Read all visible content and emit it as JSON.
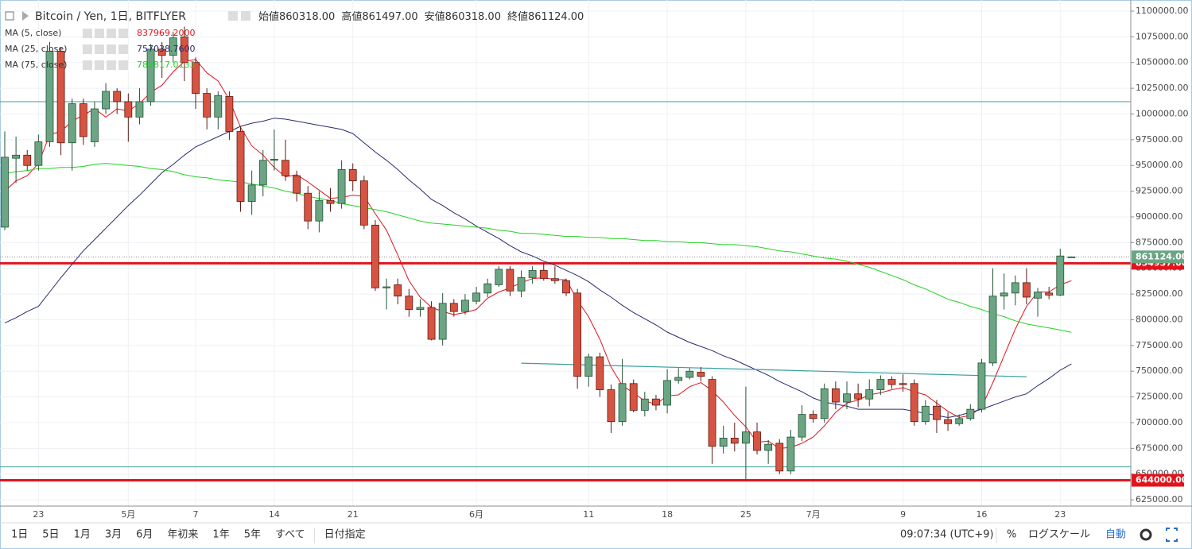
{
  "header": {
    "title": "Bitcoin / Yen, 1日, BITFLYER",
    "ohlc": [
      {
        "name": "始値",
        "value": "860318.00"
      },
      {
        "name": "高値",
        "value": "861497.00"
      },
      {
        "name": "安値",
        "value": "860318.00"
      },
      {
        "name": "終値",
        "value": "861124.00"
      }
    ]
  },
  "chart_data": {
    "type": "candlestick",
    "categories": [
      null,
      null,
      null,
      "23",
      null,
      null,
      null,
      null,
      null,
      null,
      null,
      "5月",
      null,
      null,
      null,
      null,
      null,
      "7",
      null,
      null,
      null,
      null,
      null,
      null,
      "14",
      null,
      null,
      null,
      null,
      null,
      null,
      "21",
      null,
      null,
      null,
      null,
      null,
      null,
      null,
      null,
      null,
      null,
      "6月",
      null,
      null,
      null,
      null,
      null,
      null,
      null,
      null,
      null,
      "11",
      null,
      null,
      null,
      null,
      null,
      null,
      "18",
      null,
      null,
      null,
      null,
      null,
      null,
      "25",
      null,
      null,
      null,
      null,
      null,
      "7月",
      null,
      null,
      null,
      null,
      null,
      null,
      null,
      "9",
      null,
      null,
      null,
      null,
      null,
      null,
      "16",
      null,
      null,
      null,
      null,
      null,
      null,
      "23",
      null
    ],
    "open": [
      890000,
      957000,
      960000,
      950000,
      973000,
      1061000,
      972000,
      1010000,
      973000,
      1005000,
      1022000,
      1012000,
      997000,
      1012000,
      1063000,
      1057000,
      1075000,
      1050000,
      1020000,
      997000,
      1017000,
      983000,
      915000,
      931000,
      955000,
      955000,
      940000,
      923000,
      896000,
      916000,
      913000,
      946000,
      935000,
      892000,
      831000,
      834000,
      823000,
      810000,
      812000,
      781000,
      816000,
      808000,
      818000,
      826000,
      834000,
      849000,
      828000,
      841000,
      848000,
      840000,
      838000,
      826000,
      745000,
      764000,
      732000,
      701000,
      738000,
      712000,
      723000,
      717000,
      741000,
      744000,
      749000,
      742000,
      677000,
      685000,
      680000,
      691000,
      673000,
      680000,
      653000,
      686000,
      708000,
      704000,
      733000,
      720000,
      728000,
      723000,
      732000,
      742000,
      738000,
      738000,
      701000,
      716000,
      703000,
      699000,
      704000,
      713000,
      758000,
      823000,
      826000,
      836000,
      821000,
      826000,
      824000,
      860318
    ],
    "high": [
      983000,
      978000,
      965000,
      980000,
      1070000,
      1065000,
      1015000,
      1015000,
      1012000,
      1030000,
      1025000,
      1020000,
      1025000,
      1068000,
      1070000,
      1080000,
      1085000,
      1055000,
      1025000,
      1022000,
      1022000,
      988000,
      945000,
      965000,
      985000,
      975000,
      945000,
      930000,
      925000,
      928000,
      955000,
      952000,
      940000,
      897000,
      840000,
      840000,
      830000,
      820000,
      818000,
      826000,
      820000,
      825000,
      832000,
      840000,
      852000,
      852000,
      848000,
      852000,
      855000,
      852000,
      840000,
      830000,
      767000,
      768000,
      737000,
      762000,
      742000,
      730000,
      727000,
      752000,
      753000,
      753000,
      754000,
      745000,
      697000,
      700000,
      735000,
      700000,
      683000,
      684000,
      693000,
      717000,
      712000,
      738000,
      740000,
      740000,
      738000,
      742000,
      746000,
      745000,
      747000,
      742000,
      722000,
      722000,
      710000,
      708000,
      718000,
      762000,
      850000,
      845000,
      843000,
      850000,
      831000,
      832000,
      869000,
      861497
    ],
    "low": [
      887000,
      933000,
      945000,
      945000,
      968000,
      960000,
      945000,
      970000,
      968000,
      1000000,
      1000000,
      973000,
      990000,
      1008000,
      1035000,
      1050000,
      1032000,
      1005000,
      985000,
      985000,
      975000,
      905000,
      902000,
      920000,
      945000,
      935000,
      915000,
      888000,
      885000,
      905000,
      908000,
      925000,
      888000,
      828000,
      810000,
      815000,
      803000,
      803000,
      780000,
      775000,
      803000,
      805000,
      815000,
      822000,
      832000,
      823000,
      822000,
      835000,
      838000,
      835000,
      823000,
      733000,
      735000,
      725000,
      690000,
      697000,
      710000,
      706000,
      712000,
      709000,
      738000,
      742000,
      740000,
      660000,
      670000,
      672000,
      645000,
      669000,
      660000,
      650000,
      650000,
      682000,
      700000,
      700000,
      713000,
      713000,
      715000,
      716000,
      727000,
      733000,
      730000,
      697000,
      698000,
      690000,
      692000,
      697000,
      702000,
      710000,
      755000,
      810000,
      814000,
      815000,
      803000,
      820000,
      823000,
      860318
    ],
    "close": [
      958000,
      960000,
      950000,
      973000,
      1061000,
      972000,
      1010000,
      978000,
      1005000,
      1022000,
      1012000,
      997000,
      1012000,
      1063000,
      1057000,
      1074000,
      1050000,
      1020000,
      997000,
      1018000,
      983000,
      915000,
      931000,
      955000,
      956000,
      940000,
      923000,
      896000,
      916000,
      913000,
      946000,
      935000,
      892000,
      831000,
      832000,
      823000,
      810000,
      812000,
      781000,
      816000,
      808000,
      819000,
      826000,
      835000,
      849000,
      828000,
      841000,
      848000,
      840000,
      838000,
      826000,
      745000,
      764000,
      732000,
      701000,
      738000,
      712000,
      723000,
      717000,
      741000,
      744000,
      750000,
      745000,
      677000,
      685000,
      680000,
      691000,
      673000,
      679000,
      653000,
      686000,
      708000,
      704000,
      733000,
      720000,
      728000,
      723000,
      732000,
      742000,
      737000,
      737000,
      701000,
      716000,
      703000,
      699000,
      704000,
      713000,
      758000,
      823000,
      826000,
      836000,
      822000,
      827000,
      824000,
      862000,
      861124
    ],
    "up_color": "#6ba583",
    "up_border": "#225437",
    "down_color": "#d75442",
    "down_border": "#5b1a13",
    "series": [
      {
        "name": "MA (5, close)",
        "color": "#e0141d",
        "value_label": "837969.2000",
        "values": [
          925000,
          935000,
          940000,
          952000,
          980000,
          983000,
          993000,
          999000,
          1005000,
          997000,
          1005000,
          1003000,
          1010000,
          1021000,
          1028000,
          1041000,
          1051000,
          1053000,
          1040000,
          1032000,
          1014000,
          987000,
          969000,
          960000,
          948000,
          939000,
          941000,
          934000,
          926000,
          918000,
          919000,
          921000,
          920000,
          903000,
          887000,
          863000,
          838000,
          822000,
          812000,
          808000,
          805000,
          807000,
          810000,
          821000,
          827000,
          831000,
          836000,
          840000,
          841000,
          839000,
          839000,
          819000,
          803000,
          781000,
          754000,
          736000,
          729000,
          721000,
          718000,
          726000,
          727000,
          735000,
          739000,
          731000,
          720000,
          707000,
          696000,
          681000,
          682000,
          675000,
          676000,
          680000,
          686000,
          697000,
          710000,
          719000,
          722000,
          727000,
          729000,
          732000,
          734000,
          730000,
          727000,
          719000,
          711000,
          705000,
          707000,
          715000,
          739000,
          765000,
          791000,
          813000,
          827000,
          827000,
          834000,
          837969.2
        ]
      },
      {
        "name": "MA (25, close)",
        "color": "#2a2a6e",
        "value_label": "757038.7600",
        "values": [
          797000,
          802000,
          808000,
          813000,
          827000,
          841000,
          854000,
          867000,
          878000,
          889000,
          900000,
          911000,
          921000,
          932000,
          943000,
          951000,
          960000,
          968000,
          973000,
          978000,
          983000,
          988000,
          991000,
          993000,
          996000,
          995000,
          993000,
          991000,
          989000,
          987000,
          985000,
          981000,
          972000,
          963000,
          955000,
          946000,
          936000,
          927000,
          917000,
          911000,
          904000,
          898000,
          891000,
          885000,
          879000,
          872000,
          866000,
          862000,
          857000,
          853000,
          848000,
          843000,
          837000,
          829000,
          822000,
          814000,
          807000,
          801000,
          795000,
          788000,
          783000,
          778000,
          774000,
          770000,
          765000,
          761000,
          756000,
          751000,
          746000,
          740000,
          735000,
          730000,
          724000,
          720000,
          718000,
          716000,
          713000,
          713000,
          713000,
          713000,
          713000,
          711000,
          709000,
          707000,
          705000,
          707000,
          710000,
          713000,
          717000,
          721000,
          725000,
          728000,
          736000,
          743000,
          751000,
          757038.76
        ]
      },
      {
        "name": "MA (75, close)",
        "color": "#22d322",
        "value_label": "787817.0133",
        "values": [
          942000,
          944000,
          945000,
          947000,
          947000,
          948000,
          948000,
          949000,
          951000,
          952000,
          951000,
          950000,
          949000,
          947000,
          946000,
          944000,
          941000,
          939000,
          938000,
          936000,
          935000,
          934000,
          932000,
          930000,
          928000,
          925000,
          923000,
          920000,
          918000,
          916000,
          913000,
          911000,
          909000,
          907000,
          905000,
          902000,
          899000,
          896000,
          894000,
          893000,
          892000,
          891000,
          890000,
          889000,
          887000,
          886000,
          884000,
          884000,
          883000,
          882000,
          881000,
          881000,
          880000,
          880000,
          879000,
          879000,
          878000,
          877000,
          877000,
          876000,
          876000,
          875000,
          875000,
          874000,
          873000,
          873000,
          872000,
          871000,
          869000,
          867000,
          866000,
          864000,
          862000,
          860000,
          859000,
          857000,
          854000,
          851000,
          847000,
          843000,
          839000,
          834000,
          830000,
          825000,
          820000,
          817000,
          813000,
          810000,
          806000,
          803000,
          799000,
          796000,
          794000,
          792000,
          790000,
          787817.0133
        ]
      }
    ],
    "horizontal_lines": [
      {
        "value": 1012000,
        "color": "#3a9f9f"
      },
      {
        "value": 854937,
        "color": "#e0141d",
        "label": "854937.00"
      },
      {
        "value": 657000,
        "color": "#3a9f9f"
      },
      {
        "value": 644000,
        "color": "#e0141d",
        "label": "644000.00"
      }
    ],
    "last_price": {
      "value": 861124,
      "label": "861124.00",
      "color": "#6ba583"
    },
    "trend_line": {
      "color": "#3a9f9f",
      "start": {
        "index": 46,
        "value": 757800
      },
      "end": {
        "index": 91,
        "value": 744600
      }
    },
    "ylim": [
      618900,
      1110800
    ],
    "yticks": [
      {
        "value": 625000,
        "label": "625000.00"
      },
      {
        "value": 650000,
        "label": "650000.00"
      },
      {
        "value": 675000,
        "label": "675000.00"
      },
      {
        "value": 700000,
        "label": "700000.00"
      },
      {
        "value": 725000,
        "label": "725000.00"
      },
      {
        "value": 750000,
        "label": "750000.00"
      },
      {
        "value": 775000,
        "label": "775000.00"
      },
      {
        "value": 800000,
        "label": "800000.00"
      },
      {
        "value": 825000,
        "label": "825000.00"
      },
      {
        "value": 850000,
        "label": "850000.00"
      },
      {
        "value": 875000,
        "label": "875000.00"
      },
      {
        "value": 900000,
        "label": "900000.00"
      },
      {
        "value": 925000,
        "label": "925000.00"
      },
      {
        "value": 950000,
        "label": "950000.00"
      },
      {
        "value": 975000,
        "label": "975000.00"
      },
      {
        "value": 1000000,
        "label": "1000000.00"
      },
      {
        "value": 1025000,
        "label": "1025000.00"
      },
      {
        "value": 1050000,
        "label": "1050000.00"
      },
      {
        "value": 1075000,
        "label": "1075000.00"
      },
      {
        "value": 1100000,
        "label": "1100000.00"
      }
    ],
    "grid": true
  },
  "toolbar": {
    "ranges": [
      "1日",
      "5日",
      "1月",
      "3月",
      "6月",
      "年初来",
      "1年",
      "5年",
      "すべて"
    ],
    "date_pick": "日付指定",
    "time": "09:07:34 (UTC+9)",
    "percent": "%",
    "log": "ログスケール",
    "auto": "自動"
  }
}
